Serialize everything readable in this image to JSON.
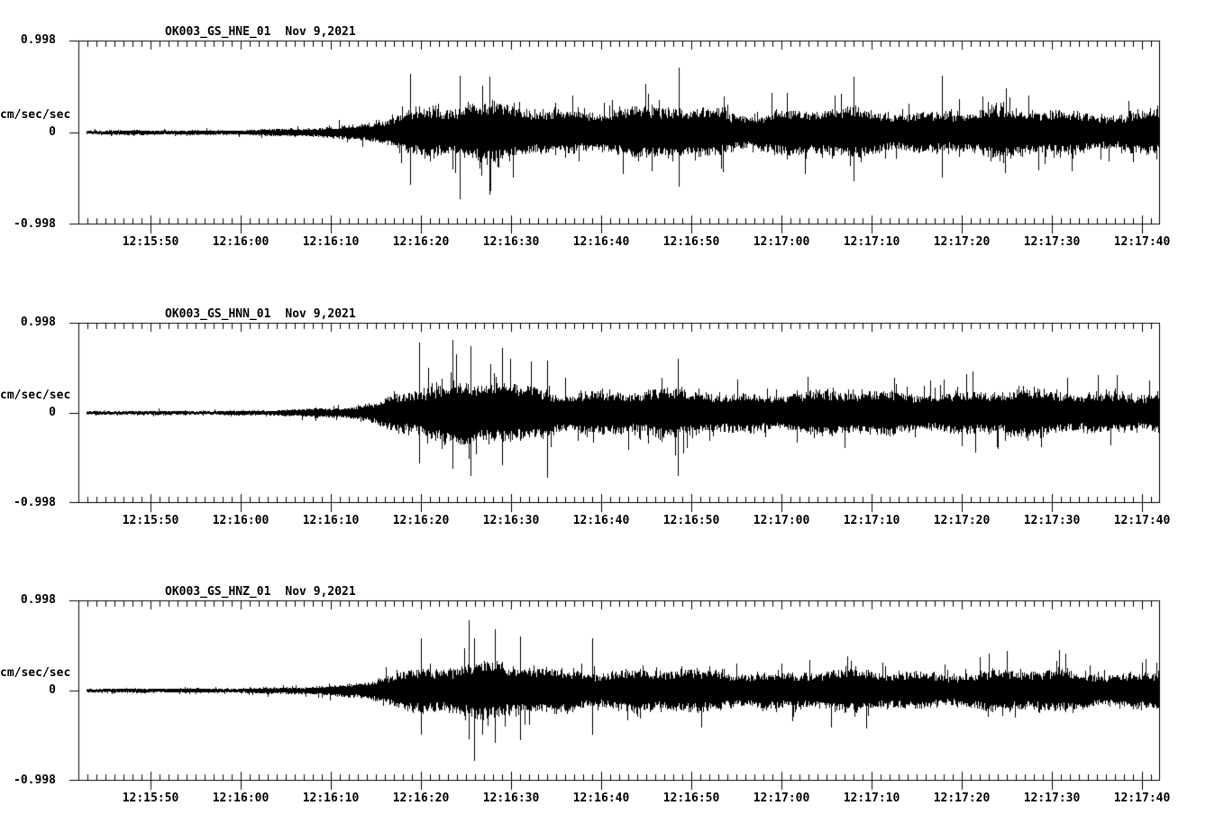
{
  "colors": {
    "ink": "#000000",
    "background": "#ffffff"
  },
  "chart_data": [
    {
      "type": "line",
      "subtype": "seismogram",
      "title": "OK003_GS_HNE_01",
      "date_label": "Nov 9,2021",
      "ylabel": "cm/sec/sec",
      "y_tick_labels": [
        "0.998",
        "0",
        "-0.998"
      ],
      "ylim": [
        -0.998,
        0.998
      ],
      "x_window": [
        "12:15:42",
        "12:17:42"
      ],
      "x_tick_labels": [
        "12:15:50",
        "12:16:00",
        "12:16:10",
        "12:16:20",
        "12:16:30",
        "12:16:40",
        "12:16:50",
        "12:17:00",
        "12:17:10",
        "12:17:20",
        "12:17:30",
        "12:17:40"
      ],
      "x_major_interval_s": 10,
      "x_minor_interval_s": 1,
      "trace_start": "12:15:43",
      "trace_color": "#000000",
      "seed": 11,
      "envelope": [
        [
          0.9,
          0.045
        ],
        [
          10,
          0.05
        ],
        [
          16,
          0.06
        ],
        [
          22,
          0.075
        ],
        [
          26,
          0.1
        ],
        [
          29,
          0.13
        ],
        [
          31,
          0.17
        ],
        [
          33,
          0.28
        ],
        [
          35,
          0.45
        ],
        [
          37,
          0.55
        ],
        [
          40,
          0.58
        ],
        [
          44,
          0.62
        ],
        [
          50,
          0.56
        ],
        [
          58,
          0.52
        ],
        [
          66,
          0.56
        ],
        [
          74,
          0.5
        ],
        [
          82,
          0.52
        ],
        [
          92,
          0.5
        ],
        [
          102,
          0.52
        ],
        [
          112,
          0.48
        ],
        [
          120,
          0.5
        ]
      ],
      "spikes": [
        [
          36.8,
          0.66,
          0.58
        ],
        [
          42.3,
          0.64,
          0.74
        ],
        [
          45.6,
          0.62,
          0.7
        ],
        [
          66.6,
          0.73,
          0.6
        ],
        [
          86.0,
          0.62,
          0.55
        ],
        [
          95.8,
          0.64,
          0.5
        ]
      ]
    },
    {
      "type": "line",
      "subtype": "seismogram",
      "title": "OK003_GS_HNN_01",
      "date_label": "Nov 9,2021",
      "ylabel": "cm/sec/sec",
      "y_tick_labels": [
        "0.998",
        "0",
        "-0.998"
      ],
      "ylim": [
        -0.998,
        0.998
      ],
      "x_window": [
        "12:15:42",
        "12:17:42"
      ],
      "x_tick_labels": [
        "12:15:50",
        "12:16:00",
        "12:16:10",
        "12:16:20",
        "12:16:30",
        "12:16:40",
        "12:16:50",
        "12:17:00",
        "12:17:10",
        "12:17:20",
        "12:17:30",
        "12:17:40"
      ],
      "x_major_interval_s": 10,
      "x_minor_interval_s": 1,
      "trace_start": "12:15:43",
      "trace_color": "#000000",
      "seed": 22,
      "envelope": [
        [
          0.9,
          0.04
        ],
        [
          10,
          0.045
        ],
        [
          16,
          0.055
        ],
        [
          22,
          0.07
        ],
        [
          26,
          0.09
        ],
        [
          29,
          0.12
        ],
        [
          31,
          0.16
        ],
        [
          33,
          0.26
        ],
        [
          35,
          0.48
        ],
        [
          37,
          0.62
        ],
        [
          39,
          0.68
        ],
        [
          42,
          0.7
        ],
        [
          46,
          0.66
        ],
        [
          52,
          0.58
        ],
        [
          60,
          0.52
        ],
        [
          70,
          0.5
        ],
        [
          80,
          0.48
        ],
        [
          90,
          0.5
        ],
        [
          100,
          0.52
        ],
        [
          110,
          0.5
        ],
        [
          120,
          0.52
        ]
      ],
      "spikes": [
        [
          37.8,
          0.8,
          0.58
        ],
        [
          41.5,
          0.83,
          0.64
        ],
        [
          43.5,
          0.76,
          0.72
        ],
        [
          47.0,
          0.74,
          0.6
        ],
        [
          52.0,
          0.6,
          0.74
        ],
        [
          66.5,
          0.62,
          0.72
        ]
      ]
    },
    {
      "type": "line",
      "subtype": "seismogram",
      "title": "OK003_GS_HNZ_01",
      "date_label": "Nov 9,2021",
      "ylabel": "cm/sec/sec",
      "y_tick_labels": [
        "0.998",
        "0",
        "-0.998"
      ],
      "ylim": [
        -0.998,
        0.998
      ],
      "x_window": [
        "12:15:42",
        "12:17:42"
      ],
      "x_tick_labels": [
        "12:15:50",
        "12:16:00",
        "12:16:10",
        "12:16:20",
        "12:16:30",
        "12:16:40",
        "12:16:50",
        "12:17:00",
        "12:17:10",
        "12:17:20",
        "12:17:30",
        "12:17:40"
      ],
      "x_major_interval_s": 10,
      "x_minor_interval_s": 1,
      "trace_start": "12:15:43",
      "trace_color": "#000000",
      "seed": 33,
      "envelope": [
        [
          0.9,
          0.045
        ],
        [
          10,
          0.05
        ],
        [
          16,
          0.06
        ],
        [
          22,
          0.075
        ],
        [
          26,
          0.09
        ],
        [
          29,
          0.12
        ],
        [
          31,
          0.17
        ],
        [
          33,
          0.3
        ],
        [
          36,
          0.5
        ],
        [
          40,
          0.58
        ],
        [
          43,
          0.62
        ],
        [
          47,
          0.58
        ],
        [
          54,
          0.52
        ],
        [
          62,
          0.48
        ],
        [
          72,
          0.45
        ],
        [
          82,
          0.46
        ],
        [
          92,
          0.44
        ],
        [
          102,
          0.46
        ],
        [
          112,
          0.44
        ],
        [
          120,
          0.45
        ]
      ],
      "spikes": [
        [
          38.0,
          0.6,
          0.5
        ],
        [
          43.3,
          0.8,
          0.56
        ],
        [
          43.9,
          0.6,
          0.8
        ],
        [
          46.2,
          0.7,
          0.6
        ],
        [
          49.0,
          0.62,
          0.56
        ],
        [
          57.0,
          0.6,
          0.5
        ]
      ]
    }
  ]
}
